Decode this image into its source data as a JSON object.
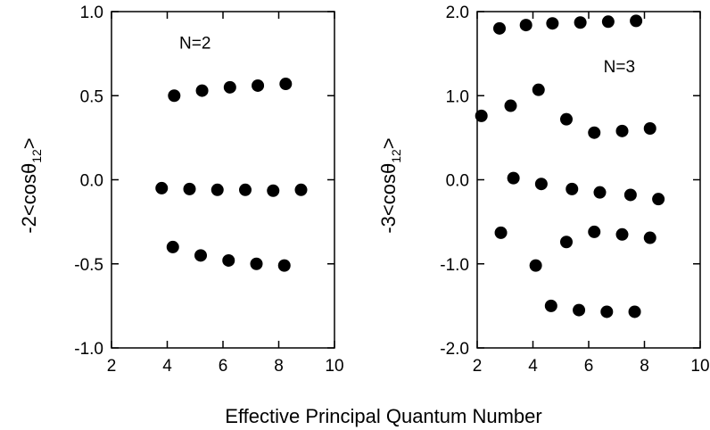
{
  "figure": {
    "shared_xlabel": "Effective Principal Quantum Number"
  },
  "chart_data": [
    {
      "type": "scatter",
      "ylabel": {
        "prefix": "-2<cosθ",
        "subscript": "12",
        "suffix": ">"
      },
      "annotation": "N=2",
      "annotation_pos": {
        "x": 5.0,
        "y": 0.78
      },
      "xlim": [
        2,
        10
      ],
      "ylim": [
        -1.0,
        1.0
      ],
      "x_ticks": [
        2,
        4,
        6,
        8,
        10
      ],
      "y_ticks": [
        1.0,
        0.5,
        0.0,
        -0.5,
        -1.0
      ],
      "x_tick_labels": [
        "2",
        "4",
        "6",
        "8",
        "10"
      ],
      "y_tick_labels": [
        "1.0",
        "0.5",
        "0.0",
        "-0.5",
        "-1.0"
      ],
      "marker_color": "#000000",
      "series": [
        {
          "x": [
            4.25,
            5.25,
            6.25,
            7.25,
            8.25
          ],
          "y": [
            0.5,
            0.53,
            0.55,
            0.56,
            0.57
          ]
        },
        {
          "x": [
            3.8,
            4.8,
            5.8,
            6.8,
            7.8,
            8.8
          ],
          "y": [
            -0.05,
            -0.055,
            -0.06,
            -0.06,
            -0.065,
            -0.06
          ]
        },
        {
          "x": [
            4.2,
            5.2,
            6.2,
            7.2,
            8.2
          ],
          "y": [
            -0.4,
            -0.45,
            -0.48,
            -0.5,
            -0.51
          ]
        }
      ]
    },
    {
      "type": "scatter",
      "ylabel": {
        "prefix": "-3<cosθ",
        "subscript": "12",
        "suffix": ">"
      },
      "annotation": "N=3",
      "annotation_pos": {
        "x": 7.1,
        "y": 1.28
      },
      "xlim": [
        2,
        10
      ],
      "ylim": [
        -2.0,
        2.0
      ],
      "x_ticks": [
        2,
        4,
        6,
        8,
        10
      ],
      "y_ticks": [
        2.0,
        1.0,
        0.0,
        -1.0,
        -2.0
      ],
      "x_tick_labels": [
        "2",
        "4",
        "6",
        "8",
        "10"
      ],
      "y_tick_labels": [
        "2.0",
        "1.0",
        "0.0",
        "-1.0",
        "-2.0"
      ],
      "marker_color": "#000000",
      "series": [
        {
          "x": [
            2.8,
            3.75,
            4.7,
            5.7,
            6.7,
            7.7
          ],
          "y": [
            1.8,
            1.84,
            1.86,
            1.87,
            1.88,
            1.89
          ]
        },
        {
          "x": [
            2.15,
            3.2,
            4.2,
            5.2,
            6.2,
            7.2,
            8.2
          ],
          "y": [
            0.76,
            0.88,
            1.07,
            0.72,
            0.56,
            0.58,
            0.61
          ]
        },
        {
          "x": [
            3.3,
            4.3,
            5.4,
            6.4,
            7.5,
            8.5
          ],
          "y": [
            0.02,
            -0.05,
            -0.11,
            -0.15,
            -0.18,
            -0.23
          ]
        },
        {
          "x": [
            2.85,
            4.1,
            5.2,
            6.2,
            7.2,
            8.2
          ],
          "y": [
            -0.63,
            -1.02,
            -0.74,
            -0.62,
            -0.65,
            -0.69
          ]
        },
        {
          "x": [
            4.65,
            5.65,
            6.65,
            7.65
          ],
          "y": [
            -1.5,
            -1.55,
            -1.57,
            -1.57
          ]
        }
      ]
    }
  ]
}
